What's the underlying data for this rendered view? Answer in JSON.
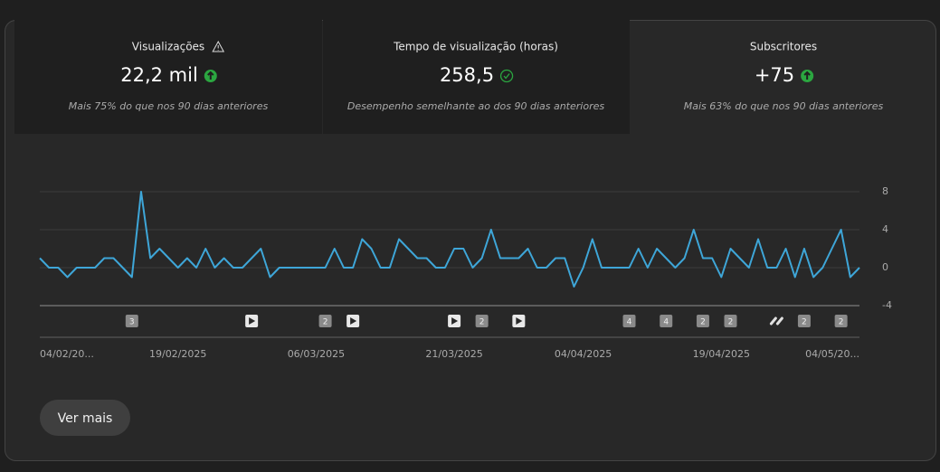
{
  "cards": [
    {
      "title": "Visualizações",
      "value": "22,2 mil",
      "subtitle": "Mais 75% do que nos 90 dias anteriores",
      "icon": "up"
    },
    {
      "title": "Tempo de visualização (horas)",
      "value": "258,5",
      "subtitle": "Desempenho semelhante ao dos 90 dias anteriores",
      "icon": "check"
    },
    {
      "title": "Subscritores",
      "value": "+75",
      "subtitle": "Mais 63% do que nos 90 dias anteriores",
      "icon": "up"
    }
  ],
  "chart_data": {
    "type": "line",
    "color": "#3ea6d8",
    "grid": true,
    "categories": [
      "04/02/20...",
      null,
      null,
      null,
      null,
      null,
      null,
      null,
      null,
      null,
      null,
      null,
      null,
      null,
      null,
      "19/02/2025",
      null,
      null,
      null,
      null,
      null,
      null,
      null,
      null,
      null,
      null,
      null,
      null,
      null,
      null,
      "06/03/2025",
      null,
      null,
      null,
      null,
      null,
      null,
      null,
      null,
      null,
      null,
      null,
      null,
      null,
      null,
      "21/03/2025",
      null,
      null,
      null,
      null,
      null,
      null,
      null,
      null,
      null,
      null,
      null,
      null,
      null,
      "04/04/2025",
      null,
      null,
      null,
      null,
      null,
      null,
      null,
      null,
      null,
      null,
      null,
      null,
      null,
      null,
      "19/04/2025",
      null,
      null,
      null,
      null,
      null,
      null,
      null,
      null,
      null,
      null,
      null,
      null,
      null,
      null,
      "04/05/20..."
    ],
    "values": [
      1,
      0,
      0,
      -1,
      0,
      0,
      0,
      1,
      1,
      0,
      -1,
      8,
      1,
      2,
      1,
      0,
      1,
      0,
      2,
      0,
      1,
      0,
      0,
      1,
      2,
      -1,
      0,
      0,
      0,
      0,
      0,
      0,
      2,
      0,
      0,
      3,
      2,
      0,
      0,
      3,
      2,
      1,
      1,
      0,
      0,
      2,
      2,
      0,
      1,
      4,
      1,
      1,
      1,
      2,
      0,
      0,
      1,
      1,
      -2,
      0,
      3,
      0,
      0,
      0,
      0,
      2,
      0,
      2,
      1,
      0,
      1,
      4,
      1,
      1,
      -1,
      2,
      1,
      0,
      3,
      0,
      0,
      2,
      -1,
      2,
      -1,
      0,
      2,
      4,
      -1,
      0
    ],
    "ylim": [
      -4,
      8
    ],
    "yticks": [
      8,
      4,
      0,
      -4
    ],
    "markers": [
      {
        "index": 10,
        "label": "3"
      },
      {
        "index": 23,
        "icon": "play"
      },
      {
        "index": 31,
        "label": "2"
      },
      {
        "index": 34,
        "icon": "play"
      },
      {
        "index": 45,
        "icon": "play"
      },
      {
        "index": 48,
        "label": "2"
      },
      {
        "index": 52,
        "icon": "play"
      },
      {
        "index": 64,
        "label": "4"
      },
      {
        "index": 68,
        "label": "4"
      },
      {
        "index": 72,
        "label": "2"
      },
      {
        "index": 75,
        "label": "2"
      },
      {
        "index": 80,
        "icon": "link"
      },
      {
        "index": 83,
        "label": "2"
      },
      {
        "index": 87,
        "label": "2"
      }
    ]
  },
  "button": "Ver mais"
}
